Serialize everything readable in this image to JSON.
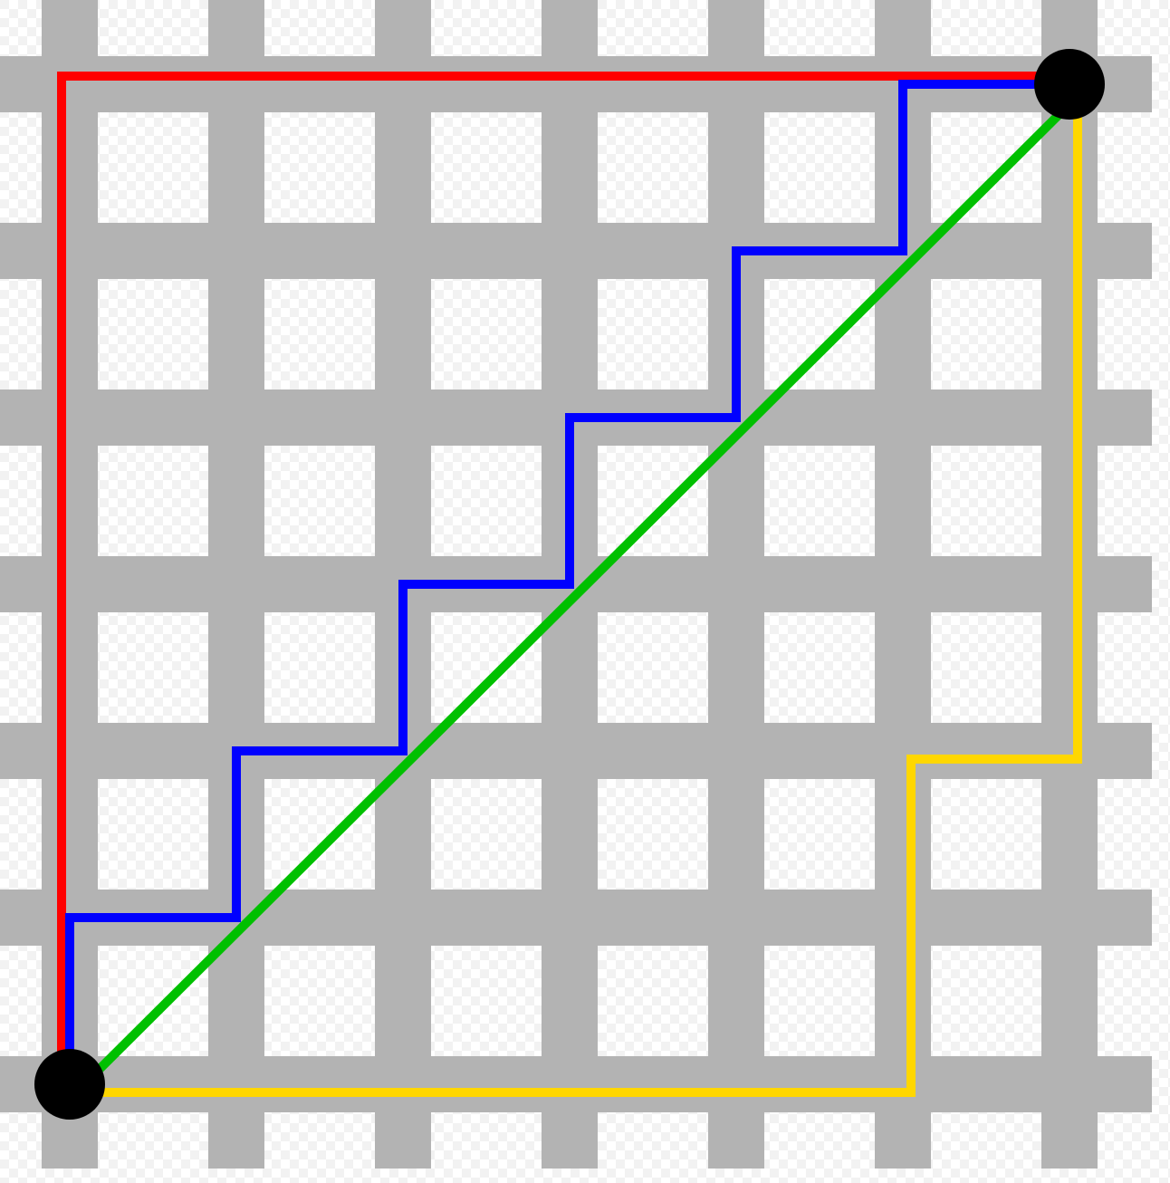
{
  "diagram": {
    "type": "taxicab-geometry",
    "grid": {
      "columns": 7,
      "rows": 7,
      "street_color": "#b3b3b3",
      "block_color": "#ffffff",
      "checker_color": "#f2f2f2"
    },
    "endpoints": [
      {
        "name": "start-point",
        "col": 0,
        "row": 6,
        "color": "#000000"
      },
      {
        "name": "end-point",
        "col": 6,
        "row": 0,
        "color": "#000000"
      }
    ],
    "paths": [
      {
        "name": "red-path",
        "color": "#ff0000",
        "kind": "manhattan",
        "steps": [
          [
            0,
            6
          ],
          [
            0,
            0
          ],
          [
            6,
            0
          ]
        ]
      },
      {
        "name": "blue-path",
        "color": "#0000ff",
        "kind": "manhattan",
        "steps": [
          [
            0,
            6
          ],
          [
            0,
            5
          ],
          [
            1,
            5
          ],
          [
            1,
            4
          ],
          [
            2,
            4
          ],
          [
            2,
            3
          ],
          [
            3,
            3
          ],
          [
            3,
            2
          ],
          [
            4,
            2
          ],
          [
            4,
            1
          ],
          [
            5,
            1
          ],
          [
            5,
            0
          ],
          [
            6,
            0
          ]
        ]
      },
      {
        "name": "yellow-path",
        "color": "#ffd700",
        "kind": "manhattan",
        "steps": [
          [
            0,
            6
          ],
          [
            5,
            6
          ],
          [
            5,
            4
          ],
          [
            6,
            4
          ],
          [
            6,
            0
          ]
        ]
      },
      {
        "name": "green-path",
        "color": "#00c000",
        "kind": "euclidean",
        "steps": [
          [
            0,
            6
          ],
          [
            6,
            0
          ]
        ]
      }
    ]
  }
}
